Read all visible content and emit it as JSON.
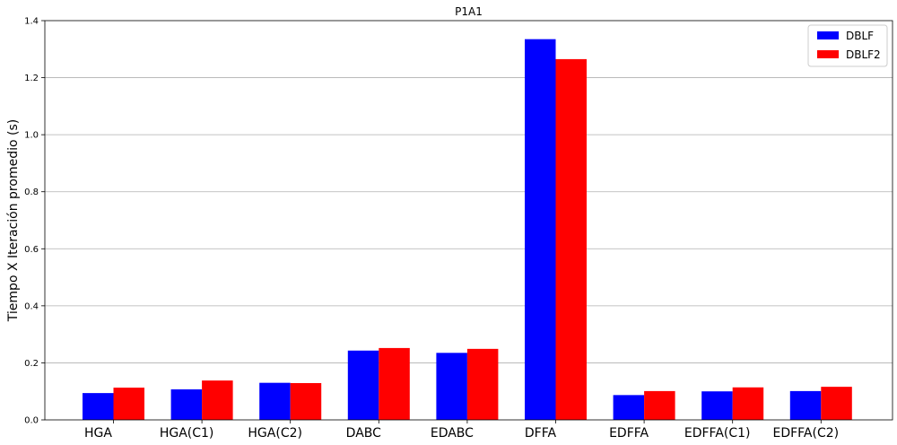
{
  "chart_data": {
    "type": "bar",
    "title": "P1A1",
    "xlabel": "",
    "ylabel": "Tiempo X Iteración promedio (s)",
    "categories": [
      "HGA",
      "HGA(C1)",
      "HGA(C2)",
      "DABC",
      "EDABC",
      "DFFA",
      "EDFFA",
      "EDFFA(C1)",
      "EDFFA(C2)"
    ],
    "series": [
      {
        "name": "DBLF",
        "color": "#0000ff",
        "values": [
          0.094,
          0.107,
          0.13,
          0.243,
          0.235,
          1.335,
          0.087,
          0.1,
          0.101
        ]
      },
      {
        "name": "DBLF2",
        "color": "#ff0000",
        "values": [
          0.113,
          0.138,
          0.129,
          0.252,
          0.249,
          1.265,
          0.101,
          0.114,
          0.116
        ]
      }
    ],
    "ylim": [
      0,
      1.4
    ],
    "yticks": [
      "0.0",
      "0.2",
      "0.4",
      "0.6",
      "0.8",
      "1.0",
      "1.2",
      "1.4"
    ],
    "grid": "y-major",
    "legend": "top-right"
  }
}
